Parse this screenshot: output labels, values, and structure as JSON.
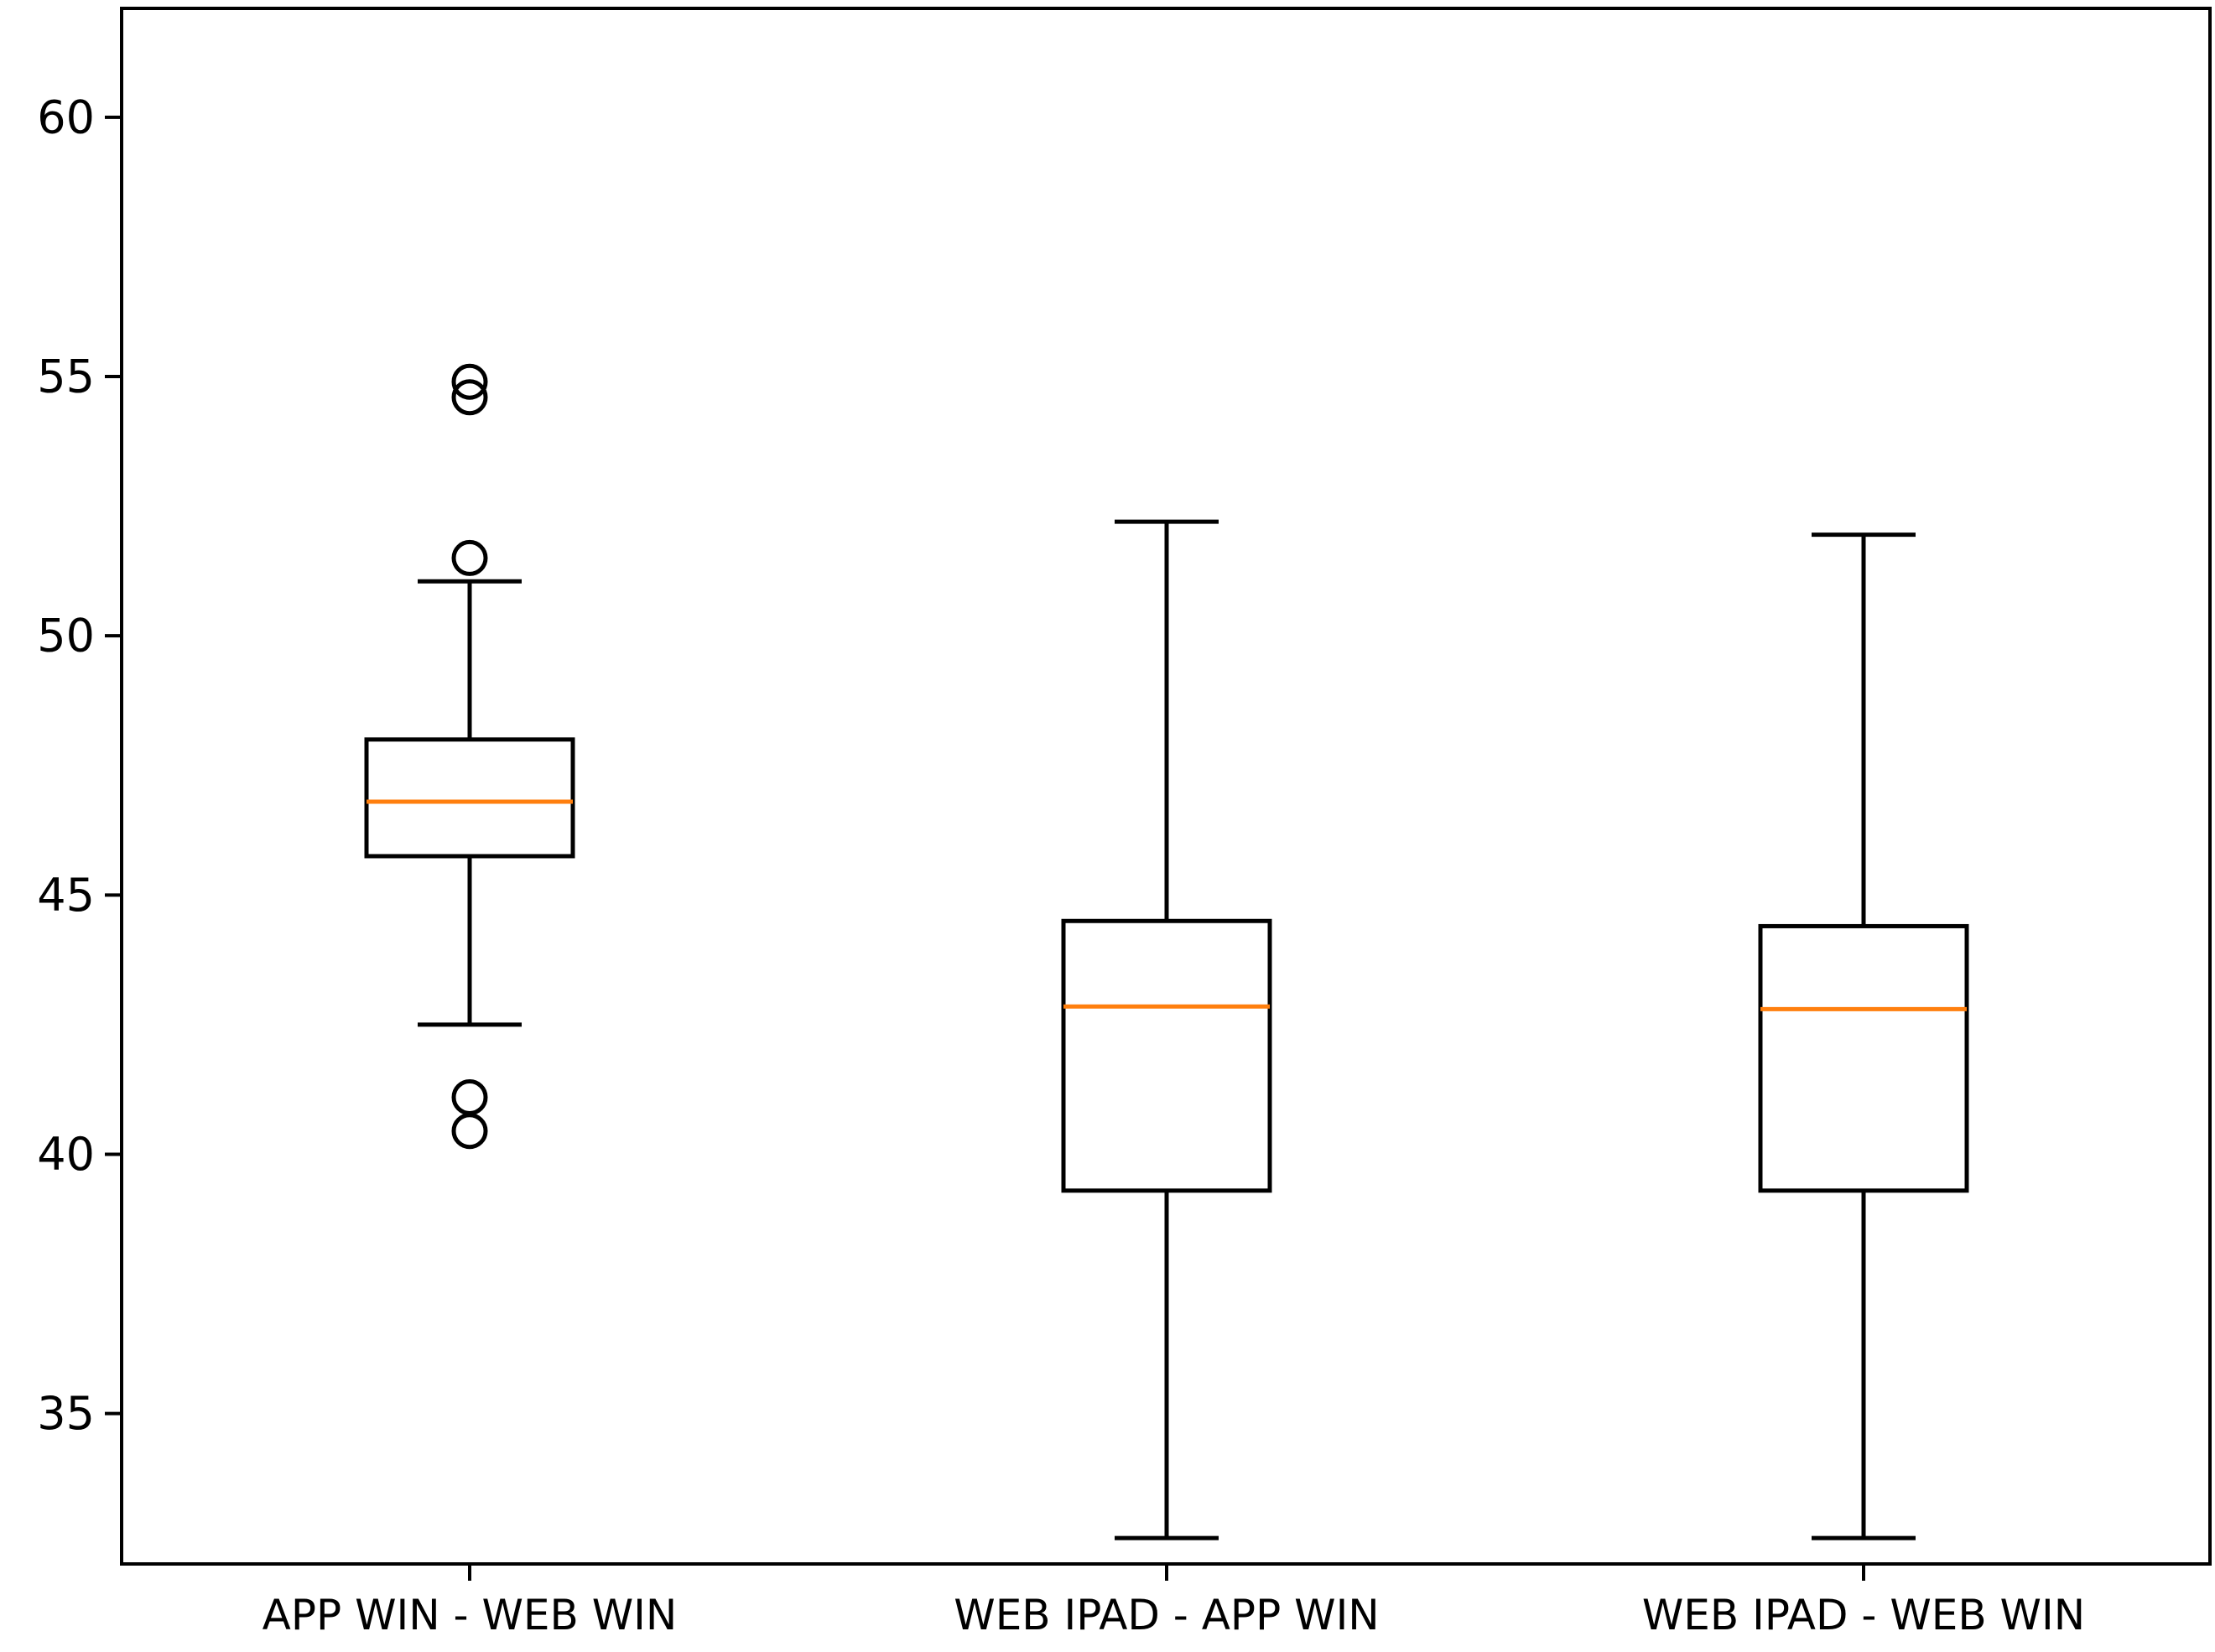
{
  "chart_data": {
    "type": "box",
    "title": "",
    "xlabel": "",
    "ylabel": "",
    "ylim": [
      32.1,
      62.1
    ],
    "yticks": [
      35,
      40,
      45,
      50,
      55,
      60
    ],
    "grid": false,
    "legend": "none",
    "categories": [
      "APP WIN - WEB WIN",
      "WEB IPAD - APP WIN",
      "WEB IPAD - WEB WIN"
    ],
    "boxes": [
      {
        "category": "APP WIN - WEB WIN",
        "whisker_low": 42.5,
        "q1": 45.75,
        "median": 46.8,
        "q3": 48.0,
        "whisker_high": 51.05,
        "outliers": [
          54.9,
          54.6,
          51.5,
          41.1,
          40.45
        ]
      },
      {
        "category": "WEB IPAD - APP WIN",
        "whisker_low": 32.6,
        "q1": 39.3,
        "median": 42.85,
        "q3": 44.5,
        "whisker_high": 52.2,
        "outliers": []
      },
      {
        "category": "WEB IPAD - WEB WIN",
        "whisker_low": 32.6,
        "q1": 39.3,
        "median": 42.8,
        "q3": 44.4,
        "whisker_high": 51.95,
        "outliers": []
      }
    ],
    "colors": {
      "box": "#000000",
      "median": "#ff7f0e",
      "axes": "#000000",
      "background": "#ffffff"
    }
  }
}
